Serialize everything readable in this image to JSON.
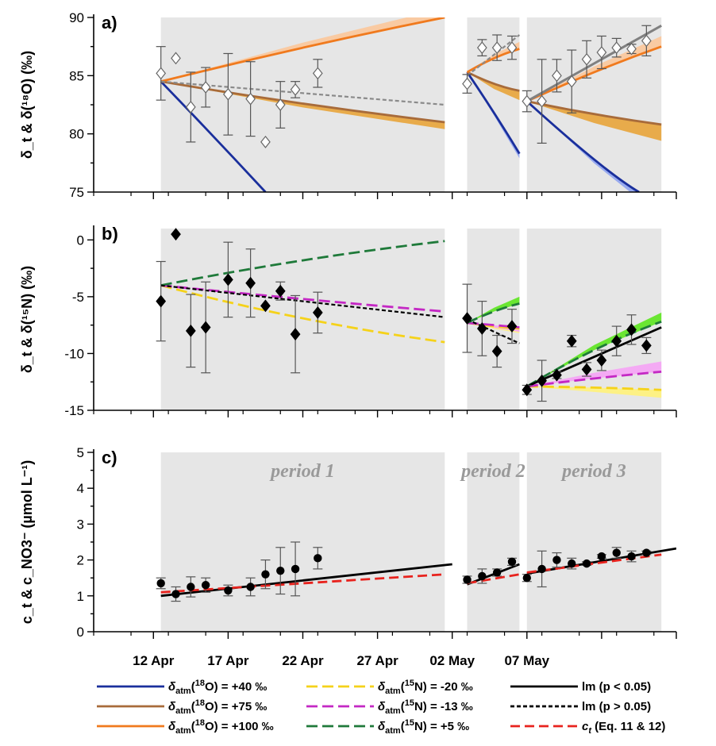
{
  "chart_data": [
    {
      "type": "line",
      "panel_label": "a)",
      "ylabel": "δ_t & δ(¹⁸O) (‰)",
      "ylim": [
        75,
        90
      ],
      "yticks": [
        75,
        80,
        85,
        90
      ],
      "periods": [
        {
          "x0": 2.5,
          "x1": 21.5,
          "label": ""
        },
        {
          "x0": 23.0,
          "x1": 26.5,
          "label": ""
        },
        {
          "x0": 27.0,
          "x1": 36.0,
          "label": ""
        }
      ],
      "observations": {
        "marker": "diamond-open",
        "points": [
          {
            "x": 2.5,
            "y": 85.2,
            "err": 2.3
          },
          {
            "x": 3.5,
            "y": 86.5,
            "err": 0
          },
          {
            "x": 4.5,
            "y": 82.3,
            "err": 3.0
          },
          {
            "x": 5.5,
            "y": 84.0,
            "err": 1.7
          },
          {
            "x": 7.0,
            "y": 83.4,
            "err": 3.5
          },
          {
            "x": 8.5,
            "y": 83.0,
            "err": 3.2
          },
          {
            "x": 9.5,
            "y": 79.3,
            "err": 0
          },
          {
            "x": 10.5,
            "y": 82.5,
            "err": 2.0
          },
          {
            "x": 11.5,
            "y": 83.8,
            "err": 0.7
          },
          {
            "x": 13.0,
            "y": 85.2,
            "err": 1.2
          },
          {
            "x": 23.0,
            "y": 84.3,
            "err": 0.8
          },
          {
            "x": 24.0,
            "y": 87.4,
            "err": 0.7
          },
          {
            "x": 25.0,
            "y": 87.4,
            "err": 1.1
          },
          {
            "x": 26.0,
            "y": 87.4,
            "err": 1.0
          },
          {
            "x": 27.0,
            "y": 82.8,
            "err": 0.9
          },
          {
            "x": 28.0,
            "y": 82.8,
            "err": 3.6
          },
          {
            "x": 29.0,
            "y": 85.0,
            "err": 1.4
          },
          {
            "x": 30.0,
            "y": 84.5,
            "err": 2.7
          },
          {
            "x": 31.0,
            "y": 86.4,
            "err": 1.6
          },
          {
            "x": 32.0,
            "y": 87.0,
            "err": 1.4
          },
          {
            "x": 33.0,
            "y": 87.4,
            "err": 0.8
          },
          {
            "x": 34.0,
            "y": 87.3,
            "err": 0.4
          },
          {
            "x": 35.0,
            "y": 88.0,
            "err": 1.3
          }
        ]
      },
      "series": [
        {
          "legend_ref": "o40",
          "segments": [
            [
              [
                2.5,
                84.5
              ],
              [
                6.0,
                79.8
              ],
              [
                9.5,
                75.0
              ]
            ],
            [
              [
                23.0,
                85.3
              ],
              [
                24.8,
                81.8
              ],
              [
                26.5,
                78.3
              ]
            ],
            [
              [
                27.0,
                82.8
              ],
              [
                31.5,
                77.8
              ],
              [
                34.5,
                75.0
              ]
            ]
          ],
          "band": [
            0,
            0.4,
            0.6
          ]
        },
        {
          "legend_ref": "o75",
          "segments": [
            [
              [
                2.5,
                84.5
              ],
              [
                12.0,
                82.6
              ],
              [
                21.5,
                81.0
              ]
            ],
            [
              [
                23.0,
                85.3
              ],
              [
                24.8,
                84.3
              ],
              [
                26.5,
                83.7
              ]
            ],
            [
              [
                27.0,
                82.8
              ],
              [
                31.5,
                81.7
              ],
              [
                36.0,
                80.8
              ]
            ]
          ],
          "band": [
            0.6,
            0.8,
            1.4
          ]
        },
        {
          "legend_ref": "o100",
          "segments": [
            [
              [
                2.5,
                84.5
              ],
              [
                12.0,
                87.4
              ],
              [
                21.5,
                90.0
              ]
            ],
            [
              [
                23.0,
                85.3
              ],
              [
                24.8,
                86.5
              ],
              [
                26.5,
                87.3
              ]
            ],
            [
              [
                27.0,
                82.8
              ],
              [
                31.5,
                85.3
              ],
              [
                36.0,
                87.5
              ]
            ]
          ],
          "band": [
            0.8,
            0.6,
            0.9
          ]
        },
        {
          "legend_ref": "lm_ns",
          "segments": [
            [
              [
                2.5,
                84.5
              ],
              [
                21.5,
                82.5
              ]
            ],
            [
              [
                23.0,
                85.0
              ],
              [
                26.5,
                88.5
              ]
            ]
          ],
          "band": [
            0,
            0,
            0
          ]
        },
        {
          "legend_ref": "lm_gray",
          "segments": [
            [
              [
                27.0,
                82.8
              ],
              [
                36.0,
                89.3
              ]
            ]
          ],
          "band": [
            0,
            0,
            0
          ]
        }
      ]
    },
    {
      "type": "line",
      "panel_label": "b)",
      "ylabel": "δ_t & δ(¹⁵N) (‰)",
      "ylim": [
        -15,
        1
      ],
      "yticks": [
        -15,
        -10,
        -5,
        0
      ],
      "periods": [
        {
          "x0": 2.5,
          "x1": 21.5,
          "label": ""
        },
        {
          "x0": 23.0,
          "x1": 26.5,
          "label": ""
        },
        {
          "x0": 27.0,
          "x1": 36.0,
          "label": ""
        }
      ],
      "observations": {
        "marker": "diamond-filled",
        "points": [
          {
            "x": 2.5,
            "y": -5.4,
            "err": 3.5
          },
          {
            "x": 3.5,
            "y": 0.5,
            "err": 0
          },
          {
            "x": 4.5,
            "y": -8.0,
            "err": 3.2
          },
          {
            "x": 5.5,
            "y": -7.7,
            "err": 4.0
          },
          {
            "x": 7.0,
            "y": -3.5,
            "err": 3.3
          },
          {
            "x": 8.5,
            "y": -3.8,
            "err": 3.0
          },
          {
            "x": 9.5,
            "y": -5.8,
            "err": 0
          },
          {
            "x": 10.5,
            "y": -4.5,
            "err": 0.8
          },
          {
            "x": 11.5,
            "y": -8.3,
            "err": 3.4
          },
          {
            "x": 13.0,
            "y": -6.4,
            "err": 1.8
          },
          {
            "x": 23.0,
            "y": -6.9,
            "err": 3.0
          },
          {
            "x": 24.0,
            "y": -7.8,
            "err": 2.4
          },
          {
            "x": 25.0,
            "y": -9.8,
            "err": 1.4
          },
          {
            "x": 26.0,
            "y": -7.6,
            "err": 1.5
          },
          {
            "x": 27.0,
            "y": -13.2,
            "err": 0.4
          },
          {
            "x": 28.0,
            "y": -12.4,
            "err": 1.8
          },
          {
            "x": 29.0,
            "y": -11.9,
            "err": 0.3
          },
          {
            "x": 30.0,
            "y": -8.9,
            "err": 0.5
          },
          {
            "x": 31.0,
            "y": -11.4,
            "err": 0.6
          },
          {
            "x": 32.0,
            "y": -10.6,
            "err": 0.9
          },
          {
            "x": 33.0,
            "y": -8.9,
            "err": 1.3
          },
          {
            "x": 34.0,
            "y": -7.9,
            "err": 1.3
          },
          {
            "x": 35.0,
            "y": -9.3,
            "err": 0.7
          }
        ]
      },
      "series": [
        {
          "legend_ref": "n20",
          "segments": [
            [
              [
                2.5,
                -4.0
              ],
              [
                12.0,
                -6.9
              ],
              [
                21.5,
                -9.0
              ]
            ],
            [
              [
                23.0,
                -7.3
              ],
              [
                24.8,
                -7.6
              ],
              [
                26.5,
                -7.8
              ]
            ],
            [
              [
                27.0,
                -12.9
              ],
              [
                31.5,
                -13.0
              ],
              [
                36.0,
                -13.2
              ]
            ]
          ],
          "band": [
            0,
            0.4,
            0.7
          ]
        },
        {
          "legend_ref": "n13",
          "segments": [
            [
              [
                2.5,
                -4.0
              ],
              [
                12.0,
                -5.2
              ],
              [
                21.5,
                -6.3
              ]
            ],
            [
              [
                23.0,
                -7.3
              ],
              [
                24.8,
                -7.5
              ],
              [
                26.5,
                -7.7
              ]
            ],
            [
              [
                27.0,
                -12.9
              ],
              [
                31.5,
                -12.2
              ],
              [
                36.0,
                -11.6
              ]
            ]
          ],
          "band": [
            0,
            0.4,
            0.9
          ]
        },
        {
          "legend_ref": "n5",
          "segments": [
            [
              [
                2.5,
                -4.0
              ],
              [
                12.0,
                -1.8
              ],
              [
                21.5,
                -0.1
              ]
            ],
            [
              [
                23.0,
                -7.3
              ],
              [
                24.8,
                -6.3
              ],
              [
                26.5,
                -5.6
              ]
            ],
            [
              [
                27.0,
                -12.9
              ],
              [
                31.5,
                -9.7
              ],
              [
                36.0,
                -7.2
              ]
            ]
          ],
          "band": [
            0,
            0.6,
            0.8
          ]
        },
        {
          "legend_ref": "lm_ns",
          "segments": [
            [
              [
                2.5,
                -4.0
              ],
              [
                21.5,
                -6.8
              ]
            ],
            [
              [
                23.0,
                -7.0
              ],
              [
                26.5,
                -9.1
              ]
            ]
          ],
          "band": [
            0,
            0,
            0
          ]
        },
        {
          "legend_ref": "lm_s",
          "segments": [
            [
              [
                27.0,
                -12.9
              ],
              [
                36.0,
                -7.7
              ]
            ]
          ],
          "band": [
            0,
            0,
            0
          ]
        }
      ]
    },
    {
      "type": "line",
      "panel_label": "c)",
      "ylabel": "c_t & c_NO3⁻ (µmol L⁻¹)",
      "ylim": [
        0,
        5
      ],
      "yticks": [
        0,
        1,
        2,
        3,
        4,
        5
      ],
      "periods": [
        {
          "x0": 2.5,
          "x1": 21.5,
          "label": "period 1"
        },
        {
          "x0": 23.0,
          "x1": 26.5,
          "label": "period 2"
        },
        {
          "x0": 27.0,
          "x1": 36.0,
          "label": "period 3"
        }
      ],
      "observations": {
        "marker": "circle-filled",
        "points": [
          {
            "x": 2.5,
            "y": 1.35,
            "err": 0.15
          },
          {
            "x": 3.5,
            "y": 1.05,
            "err": 0.2
          },
          {
            "x": 4.5,
            "y": 1.25,
            "err": 0.28
          },
          {
            "x": 5.5,
            "y": 1.3,
            "err": 0.2
          },
          {
            "x": 7.0,
            "y": 1.15,
            "err": 0.15
          },
          {
            "x": 8.5,
            "y": 1.25,
            "err": 0.25
          },
          {
            "x": 9.5,
            "y": 1.6,
            "err": 0.4
          },
          {
            "x": 10.5,
            "y": 1.7,
            "err": 0.65
          },
          {
            "x": 11.5,
            "y": 1.75,
            "err": 0.75
          },
          {
            "x": 13.0,
            "y": 2.05,
            "err": 0.3
          },
          {
            "x": 23.0,
            "y": 1.45,
            "err": 0.1
          },
          {
            "x": 24.0,
            "y": 1.55,
            "err": 0.2
          },
          {
            "x": 25.0,
            "y": 1.65,
            "err": 0.1
          },
          {
            "x": 26.0,
            "y": 1.95,
            "err": 0.1
          },
          {
            "x": 27.0,
            "y": 1.5,
            "err": 0.1
          },
          {
            "x": 28.0,
            "y": 1.75,
            "err": 0.5
          },
          {
            "x": 29.0,
            "y": 2.0,
            "err": 0.2
          },
          {
            "x": 30.0,
            "y": 1.9,
            "err": 0.15
          },
          {
            "x": 31.0,
            "y": 1.9,
            "err": 0.05
          },
          {
            "x": 32.0,
            "y": 2.1,
            "err": 0.05
          },
          {
            "x": 33.0,
            "y": 2.2,
            "err": 0.15
          },
          {
            "x": 34.0,
            "y": 2.1,
            "err": 0.15
          },
          {
            "x": 35.0,
            "y": 2.2,
            "err": 0.05
          }
        ]
      },
      "series": [
        {
          "legend_ref": "lm_s",
          "segments": [
            [
              [
                2.5,
                1.0
              ],
              [
                22.0,
                1.88
              ]
            ],
            [
              [
                23.0,
                1.32
              ],
              [
                26.5,
                1.88
              ]
            ],
            [
              [
                27.0,
                1.62
              ],
              [
                37.0,
                2.32
              ]
            ]
          ],
          "band": [
            0,
            0,
            0
          ]
        },
        {
          "legend_ref": "ct",
          "segments": [
            [
              [
                2.5,
                1.1
              ],
              [
                21.5,
                1.6
              ]
            ],
            [
              [
                23.0,
                1.35
              ],
              [
                26.5,
                1.6
              ]
            ],
            [
              [
                27.0,
                1.65
              ],
              [
                36.0,
                2.15
              ]
            ]
          ],
          "band": [
            0,
            0,
            0
          ]
        }
      ]
    }
  ],
  "x_axis": {
    "xlim": [
      -2,
      37
    ],
    "tick_positions": [
      2,
      7,
      12,
      17,
      22,
      27,
      32,
      37
    ],
    "tick_labels": [
      "12 Apr",
      "17 Apr",
      "22 Apr",
      "27 Apr",
      "02 May",
      "07 May"
    ],
    "tick_label_positions": [
      2,
      7,
      12,
      17,
      22,
      27
    ]
  },
  "legend": [
    {
      "key": "o40",
      "prefix": "δ",
      "sub": "atm",
      "mid": "(",
      "sup": "18",
      "text": "O) = +40 ‰",
      "color": "#1a2f9c",
      "dash": "",
      "band": "#8fa3f0"
    },
    {
      "key": "n20",
      "prefix": "δ",
      "sub": "atm",
      "mid": "(",
      "sup": "15",
      "text": "N) = -20 ‰",
      "color": "#f5d21a",
      "dash": "14,6",
      "band": "#fff27a"
    },
    {
      "key": "lm_s",
      "prefix": "",
      "sub": "",
      "mid": "",
      "sup": "",
      "text": "lm (p < 0.05)",
      "color": "#000000",
      "dash": "",
      "band": ""
    },
    {
      "key": "o75",
      "prefix": "δ",
      "sub": "atm",
      "mid": "(",
      "sup": "18",
      "text": "O) = +75 ‰",
      "color": "#a86b3a",
      "dash": "",
      "band": "#e8a43a"
    },
    {
      "key": "n13",
      "prefix": "δ",
      "sub": "atm",
      "mid": "(",
      "sup": "15",
      "text": "N) = -13 ‰",
      "color": "#c428c4",
      "dash": "14,6",
      "band": "#f5a3f5"
    },
    {
      "key": "lm_ns",
      "prefix": "",
      "sub": "",
      "mid": "",
      "sup": "",
      "text": "lm (p > 0.05)",
      "color": "#000000",
      "dash": "5,3",
      "band": ""
    },
    {
      "key": "o100",
      "prefix": "δ",
      "sub": "atm",
      "mid": "(",
      "sup": "18",
      "text": "O) = +100 ‰",
      "color": "#f07a1e",
      "dash": "",
      "band": "#fbc79a"
    },
    {
      "key": "n5",
      "prefix": "δ",
      "sub": "atm",
      "mid": "(",
      "sup": "15",
      "text": "N) = +5 ‰",
      "color": "#1f7a3a",
      "dash": "14,6",
      "band": "#5ce61e"
    },
    {
      "key": "ct",
      "prefix": "c",
      "sub": "t",
      "mid": "",
      "sup": "",
      "text": " (Eq. 11 & 12)",
      "color": "#e8231e",
      "dash": "12,6",
      "band": ""
    }
  ],
  "colors": {
    "period_shade": "#e6e6e6",
    "lm_gray": "#808080",
    "lm_gray_dash": "#8a8a8a",
    "marker_fill": "#ffffff",
    "marker_stroke": "#000000",
    "errorbar": "#555555"
  }
}
